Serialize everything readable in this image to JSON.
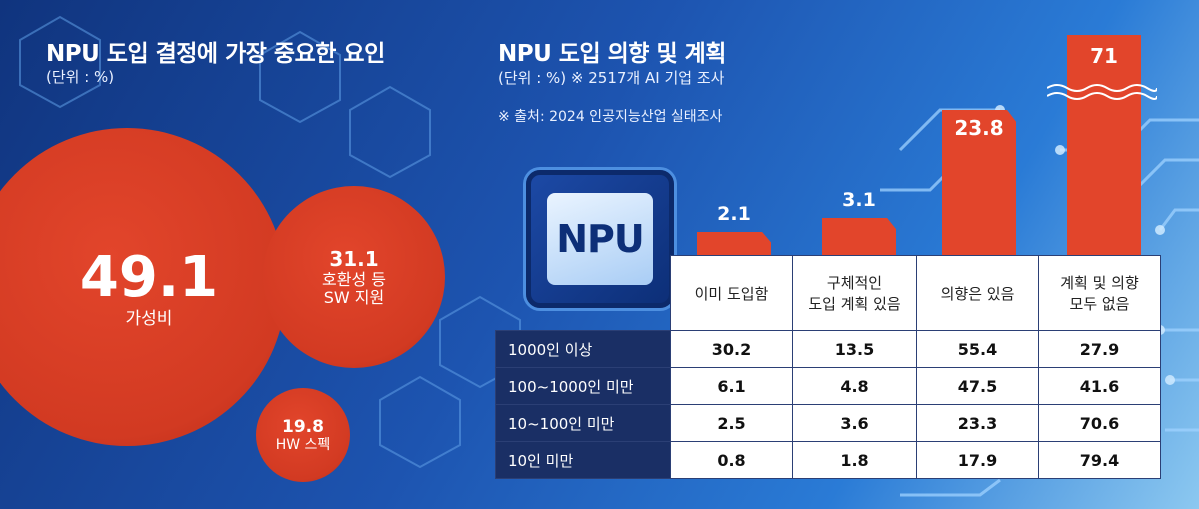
{
  "left": {
    "title": "NPU 도입 결정에 가장 중요한 요인",
    "unit": "(단위 : %)"
  },
  "right": {
    "title": "NPU 도입 의향 및 계획",
    "unit": "(단위 : %) ※ 2517개 AI 기업 조사",
    "source": "※ 출처: 2024 인공지능산업 실태조사",
    "chip_label": "NPU"
  },
  "colors": {
    "accent": "#e2452b",
    "table_header": "#1a2f65"
  },
  "chart_data": [
    {
      "type": "bubble",
      "title": "NPU 도입 결정에 가장 중요한 요인",
      "unit": "%",
      "items": [
        {
          "label": "가성비",
          "value": 49.1
        },
        {
          "label": "호환성 등 SW 지원",
          "value": 31.1
        },
        {
          "label": "HW 스펙",
          "value": 19.8
        }
      ]
    },
    {
      "type": "bar",
      "title": "NPU 도입 의향 및 계획",
      "unit": "%",
      "categories": [
        "이미 도입함",
        "구체적인 도입 계획 있음",
        "의향은 있음",
        "계획 및 의향 모두 없음"
      ],
      "values": [
        2.1,
        3.1,
        23.8,
        71
      ],
      "axis_break": "71"
    },
    {
      "type": "table",
      "columns": [
        "이미 도입함",
        "구체적인 도입 계획 있음",
        "의향은 있음",
        "계획 및 의향 모두 없음"
      ],
      "rows": [
        {
          "label": "1000인 이상",
          "values": [
            "30.2",
            "13.5",
            "55.4",
            "27.9"
          ]
        },
        {
          "label": "100~1000인 미만",
          "values": [
            "6.1",
            "4.8",
            "47.5",
            "41.6"
          ]
        },
        {
          "label": "10~100인 미만",
          "values": [
            "2.5",
            "3.6",
            "23.3",
            "70.6"
          ]
        },
        {
          "label": "10인 미만",
          "values": [
            "0.8",
            "1.8",
            "17.9",
            "79.4"
          ]
        }
      ]
    }
  ],
  "bubbles": [
    {
      "value": "49.1",
      "label": "가성비"
    },
    {
      "value": "31.1",
      "label1": "호환성 등",
      "label2": "SW 지원"
    },
    {
      "value": "19.8",
      "label": "HW 스펙"
    }
  ],
  "bars": [
    {
      "value": "2.1"
    },
    {
      "value": "3.1"
    },
    {
      "value": "23.8"
    },
    {
      "value": "71"
    }
  ],
  "table": {
    "headers": [
      {
        "line1": "이미 도입함",
        "line2": ""
      },
      {
        "line1": "구체적인",
        "line2": "도입 계획 있음"
      },
      {
        "line1": "의향은 있음",
        "line2": ""
      },
      {
        "line1": "계획 및 의향",
        "line2": "모두 없음"
      }
    ]
  }
}
